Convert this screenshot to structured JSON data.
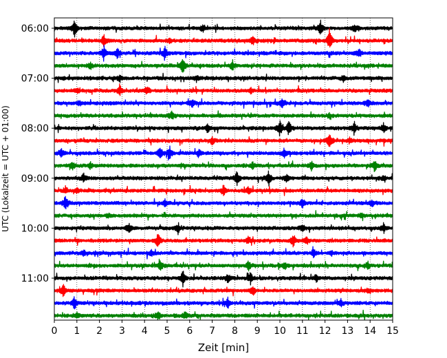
{
  "chart_data": {
    "type": "line",
    "xlabel": "Zeit  [min]",
    "ylabel": "UTC (Lokalzeit = UTC + 01:00)",
    "xlim": [
      0,
      15
    ],
    "x_ticks": [
      "0",
      "1",
      "2",
      "3",
      "4",
      "5",
      "6",
      "7",
      "8",
      "9",
      "10",
      "11",
      "12",
      "13",
      "14",
      "15"
    ],
    "y_ticks": [
      "06:00",
      "07:00",
      "08:00",
      "09:00",
      "10:00",
      "11:00"
    ],
    "grid": "vertical dotted",
    "color_cycle": [
      "#000000",
      "#ff0000",
      "#0000ff",
      "#008000"
    ],
    "traces": [
      {
        "start": "06:00",
        "color": "#000000",
        "events": [
          [
            0.9,
            1.0
          ],
          [
            6.6,
            0.5
          ],
          [
            11.8,
            1.1
          ],
          [
            13.3,
            0.5
          ]
        ]
      },
      {
        "start": "06:15",
        "color": "#ff0000",
        "events": [
          [
            2.2,
            0.7
          ],
          [
            5.1,
            0.3
          ],
          [
            8.8,
            0.5
          ],
          [
            12.2,
            1.4
          ]
        ]
      },
      {
        "start": "06:30",
        "color": "#0000ff",
        "events": [
          [
            2.2,
            0.9
          ],
          [
            2.8,
            0.6
          ],
          [
            4.9,
            0.8
          ],
          [
            13.5,
            0.6
          ]
        ]
      },
      {
        "start": "06:45",
        "color": "#008000",
        "events": [
          [
            1.6,
            0.4
          ],
          [
            5.7,
            1.0
          ],
          [
            7.9,
            0.6
          ]
        ]
      },
      {
        "start": "07:00",
        "color": "#000000",
        "events": [
          [
            2.9,
            0.4
          ],
          [
            6.3,
            0.3
          ],
          [
            12.8,
            0.3
          ]
        ]
      },
      {
        "start": "07:15",
        "color": "#ff0000",
        "events": [
          [
            1.0,
            0.3
          ],
          [
            2.9,
            0.6
          ],
          [
            4.1,
            0.5
          ],
          [
            8.7,
            0.4
          ]
        ]
      },
      {
        "start": "07:30",
        "color": "#0000ff",
        "events": [
          [
            1.1,
            0.3
          ],
          [
            6.1,
            0.5
          ],
          [
            10.1,
            0.8
          ],
          [
            13.9,
            0.5
          ]
        ]
      },
      {
        "start": "07:45",
        "color": "#008000",
        "events": [
          [
            5.2,
            0.5
          ],
          [
            12.2,
            0.3
          ]
        ]
      },
      {
        "start": "08:00",
        "color": "#000000",
        "events": [
          [
            6.8,
            0.5
          ],
          [
            10.0,
            1.0
          ],
          [
            10.4,
            0.9
          ],
          [
            13.3,
            0.8
          ],
          [
            14.6,
            0.6
          ]
        ]
      },
      {
        "start": "08:15",
        "color": "#ff0000",
        "events": [
          [
            7.0,
            0.5
          ],
          [
            12.2,
            0.9
          ],
          [
            13.1,
            0.3
          ]
        ]
      },
      {
        "start": "08:30",
        "color": "#0000ff",
        "events": [
          [
            0.3,
            0.7
          ],
          [
            4.7,
            0.8
          ],
          [
            5.1,
            0.9
          ],
          [
            6.4,
            0.5
          ],
          [
            10.2,
            0.6
          ]
        ]
      },
      {
        "start": "08:45",
        "color": "#008000",
        "events": [
          [
            0.8,
            0.5
          ],
          [
            1.6,
            0.4
          ],
          [
            8.8,
            0.4
          ],
          [
            11.4,
            0.5
          ],
          [
            14.2,
            0.8
          ]
        ]
      },
      {
        "start": "09:00",
        "color": "#000000",
        "events": [
          [
            1.3,
            0.5
          ],
          [
            8.1,
            1.0
          ],
          [
            9.5,
            0.9
          ],
          [
            10.3,
            0.6
          ],
          [
            14.6,
            0.3
          ]
        ]
      },
      {
        "start": "09:15",
        "color": "#ff0000",
        "events": [
          [
            0.5,
            0.5
          ],
          [
            1.0,
            0.3
          ],
          [
            7.5,
            0.6
          ],
          [
            8.6,
            0.5
          ]
        ]
      },
      {
        "start": "09:30",
        "color": "#0000ff",
        "events": [
          [
            0.5,
            1.0
          ],
          [
            4.9,
            0.4
          ],
          [
            11.0,
            0.6
          ],
          [
            14.1,
            0.4
          ]
        ]
      },
      {
        "start": "09:45",
        "color": "#008000",
        "events": [
          [
            2.4,
            0.3
          ],
          [
            13.6,
            0.3
          ]
        ]
      },
      {
        "start": "10:00",
        "color": "#000000",
        "events": [
          [
            3.3,
            0.7
          ],
          [
            5.5,
            0.6
          ],
          [
            11.0,
            0.5
          ],
          [
            14.6,
            0.6
          ]
        ]
      },
      {
        "start": "10:15",
        "color": "#ff0000",
        "events": [
          [
            4.6,
            0.9
          ],
          [
            8.6,
            0.5
          ],
          [
            10.6,
            0.8
          ],
          [
            11.2,
            0.4
          ]
        ]
      },
      {
        "start": "10:30",
        "color": "#0000ff",
        "events": [
          [
            1.3,
            0.3
          ],
          [
            4.3,
            0.4
          ],
          [
            11.5,
            0.6
          ],
          [
            12.3,
            0.3
          ]
        ]
      },
      {
        "start": "10:45",
        "color": "#008000",
        "events": [
          [
            4.7,
            0.6
          ],
          [
            8.6,
            0.6
          ],
          [
            10.2,
            0.5
          ],
          [
            13.9,
            0.4
          ]
        ]
      },
      {
        "start": "11:00",
        "color": "#000000",
        "events": [
          [
            5.7,
            1.0
          ],
          [
            7.7,
            0.6
          ],
          [
            8.7,
            0.7
          ],
          [
            11.6,
            0.4
          ]
        ]
      },
      {
        "start": "11:15",
        "color": "#ff0000",
        "events": [
          [
            0.4,
            0.8
          ],
          [
            8.8,
            0.6
          ],
          [
            13.9,
            0.3
          ]
        ]
      },
      {
        "start": "11:30",
        "color": "#0000ff",
        "events": [
          [
            0.9,
            0.8
          ],
          [
            7.7,
            0.6
          ],
          [
            12.7,
            0.4
          ]
        ]
      },
      {
        "start": "11:45",
        "color": "#008000",
        "events": [
          [
            1.0,
            0.4
          ],
          [
            4.6,
            0.5
          ],
          [
            5.8,
            0.5
          ]
        ]
      }
    ]
  }
}
